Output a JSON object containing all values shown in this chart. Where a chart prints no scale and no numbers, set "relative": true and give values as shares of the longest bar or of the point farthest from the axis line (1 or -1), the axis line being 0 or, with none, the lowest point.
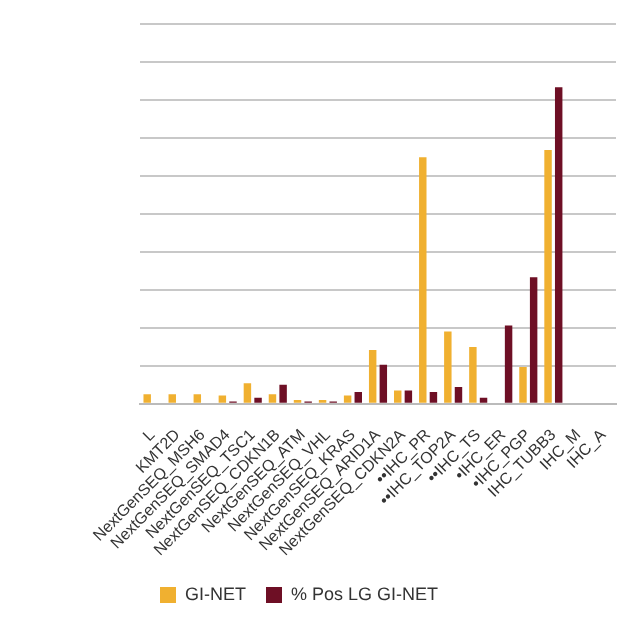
{
  "chart_data": {
    "type": "bar",
    "relative": true,
    "grid": "y",
    "legend": "bottom left",
    "categories": [
      "L",
      "KMT2D",
      "NextGenSEQ_MSH6",
      "NextGenSEQ_SMAD4",
      "NextGenSEQ_TSC1",
      "NextGenSEQ_CDKN1B",
      "NextGenSEQ_ATM",
      "NextGenSEQ_VHL",
      "NextGenSEQ_KRAS",
      "NextGenSEQ_ARID1A",
      "NextGenSEQ_CDKN2A",
      "••IHC_PR",
      "••IHC_TOP2A",
      "••IHC_TS",
      "•IHC_ER",
      "•IHC_PGP",
      "IHC_TUBB3",
      "IHC_M",
      "IHC_A"
    ],
    "series": [
      {
        "name": "GI-NET",
        "color": "#f0b030",
        "values": [
          0.03,
          0.03,
          0.03,
          0.026,
          0.065,
          0.03,
          0.012,
          0.012,
          0.026,
          0.17,
          0.042,
          0.779,
          0.228,
          0.179,
          0,
          0.116,
          0.802,
          null,
          null
        ]
      },
      {
        "name": "% Pos LG GI-NET",
        "color": "#6e0f25",
        "values": [
          0,
          0,
          0,
          0.007,
          0.019,
          0.06,
          0.007,
          0.007,
          0.037,
          0.123,
          0.042,
          0.037,
          0.053,
          0.019,
          0.247,
          0.4,
          1,
          null,
          null
        ]
      }
    ]
  }
}
